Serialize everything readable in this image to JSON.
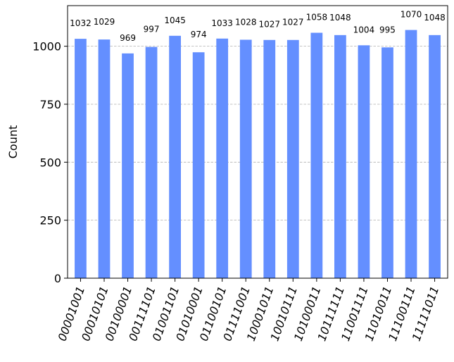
{
  "chart_data": {
    "type": "bar",
    "ylabel": "Count",
    "ylim": [
      0,
      1175
    ],
    "yticks": [
      0,
      250,
      500,
      750,
      1000
    ],
    "grid": "horizontal-dashed",
    "bar_color": "#648fff",
    "categories": [
      "00001001",
      "00010101",
      "00100001",
      "00111101",
      "01001101",
      "01010001",
      "01100101",
      "01111001",
      "10001011",
      "10010111",
      "10100011",
      "10111111",
      "11001111",
      "11010011",
      "11100111",
      "11111011"
    ],
    "values": [
      1032,
      1029,
      969,
      997,
      1045,
      974,
      1033,
      1028,
      1027,
      1027,
      1058,
      1048,
      1004,
      995,
      1070,
      1048
    ]
  }
}
